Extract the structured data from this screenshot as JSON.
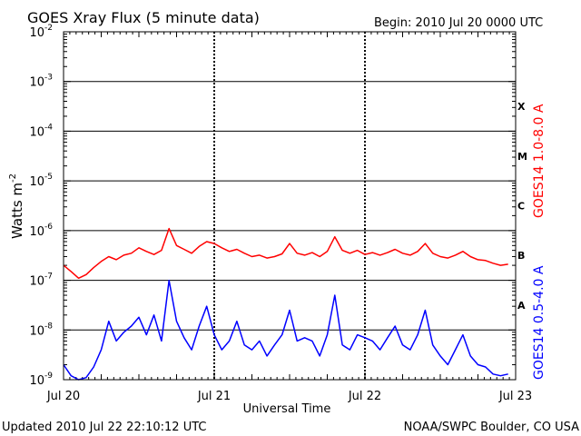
{
  "chart_data": {
    "type": "line",
    "title": "GOES Xray Flux (5 minute data)",
    "begin_text": "Begin:  2010 Jul 20 0000 UTC",
    "xlabel": "Universal Time",
    "ylabel": "Watts m",
    "ylabel_exponent": "-2",
    "updated_text": "Updated 2010 Jul 22 22:10:12 UTC",
    "source_text": "NOAA/SWPC Boulder, CO USA",
    "x_tick_labels": [
      "Jul 20",
      "Jul 21",
      "Jul 22",
      "Jul 23"
    ],
    "x_domain_days": [
      0,
      3
    ],
    "y_scale": "log",
    "ylim": [
      1e-09,
      0.01
    ],
    "y_tick_labels": [
      {
        "mantissa": "10",
        "exponent": "-9"
      },
      {
        "mantissa": "10",
        "exponent": "-8"
      },
      {
        "mantissa": "10",
        "exponent": "-7"
      },
      {
        "mantissa": "10",
        "exponent": "-6"
      },
      {
        "mantissa": "10",
        "exponent": "-5"
      },
      {
        "mantissa": "10",
        "exponent": "-4"
      },
      {
        "mantissa": "10",
        "exponent": "-3"
      },
      {
        "mantissa": "10",
        "exponent": "-2"
      }
    ],
    "flare_classes": [
      "A",
      "B",
      "C",
      "M",
      "X"
    ],
    "grid": true,
    "series": [
      {
        "name": "GOES14 1.0-8.0 A",
        "color": "#ff0000",
        "x": [
          0.0,
          0.05,
          0.1,
          0.15,
          0.2,
          0.25,
          0.3,
          0.35,
          0.4,
          0.45,
          0.5,
          0.55,
          0.6,
          0.65,
          0.7,
          0.75,
          0.8,
          0.85,
          0.9,
          0.95,
          1.0,
          1.05,
          1.1,
          1.15,
          1.2,
          1.25,
          1.3,
          1.35,
          1.4,
          1.45,
          1.5,
          1.55,
          1.6,
          1.65,
          1.7,
          1.75,
          1.8,
          1.85,
          1.9,
          1.95,
          2.0,
          2.05,
          2.1,
          2.15,
          2.2,
          2.25,
          2.3,
          2.35,
          2.4,
          2.45,
          2.5,
          2.55,
          2.6,
          2.65,
          2.7,
          2.75,
          2.8,
          2.85,
          2.9,
          2.95
        ],
        "values": [
          2e-07,
          1.5e-07,
          1.1e-07,
          1.3e-07,
          1.8e-07,
          2.4e-07,
          3e-07,
          2.6e-07,
          3.2e-07,
          3.5e-07,
          4.5e-07,
          3.8e-07,
          3.3e-07,
          4e-07,
          1.1e-06,
          5e-07,
          4.2e-07,
          3.5e-07,
          4.8e-07,
          6e-07,
          5.5e-07,
          4.5e-07,
          3.8e-07,
          4.2e-07,
          3.5e-07,
          3e-07,
          3.2e-07,
          2.8e-07,
          3e-07,
          3.4e-07,
          5.5e-07,
          3.5e-07,
          3.2e-07,
          3.6e-07,
          3e-07,
          3.8e-07,
          7.5e-07,
          4e-07,
          3.5e-07,
          4e-07,
          3.3e-07,
          3.6e-07,
          3.2e-07,
          3.6e-07,
          4.2e-07,
          3.5e-07,
          3.2e-07,
          3.8e-07,
          5.5e-07,
          3.5e-07,
          3e-07,
          2.8e-07,
          3.2e-07,
          3.8e-07,
          3e-07,
          2.6e-07,
          2.5e-07,
          2.2e-07,
          2e-07,
          2.1e-07
        ]
      },
      {
        "name": "GOES14 0.5-4.0 A",
        "color": "#0000ff",
        "x": [
          0.0,
          0.05,
          0.1,
          0.15,
          0.2,
          0.25,
          0.3,
          0.35,
          0.4,
          0.45,
          0.5,
          0.55,
          0.6,
          0.65,
          0.7,
          0.75,
          0.8,
          0.85,
          0.9,
          0.95,
          1.0,
          1.05,
          1.1,
          1.15,
          1.2,
          1.25,
          1.3,
          1.35,
          1.4,
          1.45,
          1.5,
          1.55,
          1.6,
          1.65,
          1.7,
          1.75,
          1.8,
          1.85,
          1.9,
          1.95,
          2.0,
          2.05,
          2.1,
          2.15,
          2.2,
          2.25,
          2.3,
          2.35,
          2.4,
          2.45,
          2.5,
          2.55,
          2.6,
          2.65,
          2.7,
          2.75,
          2.8,
          2.85,
          2.9,
          2.95
        ],
        "values": [
          2e-09,
          1.2e-09,
          1e-09,
          1.1e-09,
          1.8e-09,
          4e-09,
          1.5e-08,
          6e-09,
          9e-09,
          1.2e-08,
          1.8e-08,
          8e-09,
          2e-08,
          6e-09,
          1e-07,
          1.5e-08,
          7e-09,
          4e-09,
          1.2e-08,
          3e-08,
          8e-09,
          4e-09,
          6e-09,
          1.5e-08,
          5e-09,
          4e-09,
          6e-09,
          3e-09,
          5e-09,
          8e-09,
          2.5e-08,
          6e-09,
          7e-09,
          6e-09,
          3e-09,
          8e-09,
          5e-08,
          5e-09,
          4e-09,
          8e-09,
          7e-09,
          6e-09,
          4e-09,
          7e-09,
          1.2e-08,
          5e-09,
          4e-09,
          8e-09,
          2.5e-08,
          5e-09,
          3e-09,
          2e-09,
          4e-09,
          8e-09,
          3e-09,
          2e-09,
          1.8e-09,
          1.3e-09,
          1.2e-09,
          1.3e-09
        ]
      }
    ]
  }
}
